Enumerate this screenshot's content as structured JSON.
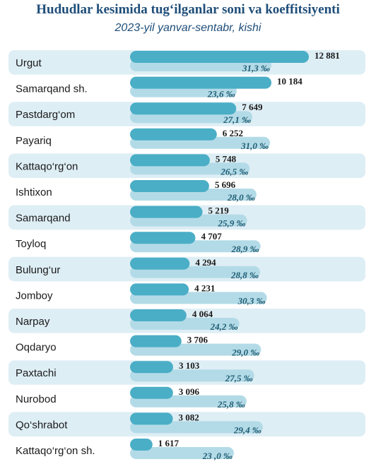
{
  "title": "Hududlar kesimida tug‘ilganlar soni va koeffitsiyenti",
  "subtitle": "2023-yil yanvar-sentabr, kishi",
  "colors": {
    "count_bar": "#4aaec6",
    "coef_bar": "#b3dbe7",
    "stripe": "#deeef5",
    "title": "#1f4e79"
  },
  "chart_data": {
    "type": "bar",
    "orientation": "horizontal",
    "title": "Hududlar kesimida tug‘ilganlar soni va koeffitsiyenti",
    "subtitle": "2023-yil yanvar-sentabr, kishi",
    "categories": [
      "Urgut",
      "Samarqand sh.",
      "Pastdarg‘om",
      "Payariq",
      "Kattaqo‘rg‘on",
      "Ishtixon",
      "Samarqand",
      "Toyloq",
      "Bulung‘ur",
      "Jomboy",
      "Narpay",
      "Oqdaryo",
      "Paxtachi",
      "Nurobod",
      "Qo‘shrabot",
      "Kattaqo‘rg‘on sh."
    ],
    "series": [
      {
        "values": [
          12881,
          10184,
          7649,
          6252,
          5748,
          5696,
          5219,
          4707,
          4294,
          4231,
          4064,
          3706,
          3103,
          3096,
          3082,
          1617
        ],
        "labels": [
          "12 881",
          "10 184",
          "7 649",
          "6 252",
          "5 748",
          "5 696",
          "5 219",
          "4 707",
          "4 294",
          "4 231",
          "4 064",
          "3 706",
          "3 103",
          "3 096",
          "3 082",
          "1 617"
        ]
      },
      {
        "values": [
          31.3,
          23.6,
          27.1,
          31.0,
          26.5,
          28.0,
          25.9,
          28.9,
          28.8,
          30.3,
          24.2,
          29.0,
          27.5,
          25.8,
          29.4,
          23.0
        ],
        "labels": [
          "31,3 ‰",
          "23,6 ‰",
          "27,1 ‰",
          "31,0 ‰",
          "26,5 ‰",
          "28,0 ‰",
          "25,9 ‰",
          "28,9 ‰",
          "28,8 ‰",
          "30,3 ‰",
          "24,2 ‰",
          "29,0 ‰",
          "27,5 ‰",
          "25,8 ‰",
          "29,4 ‰",
          "23 ,0 ‰"
        ]
      }
    ],
    "grid": false
  }
}
